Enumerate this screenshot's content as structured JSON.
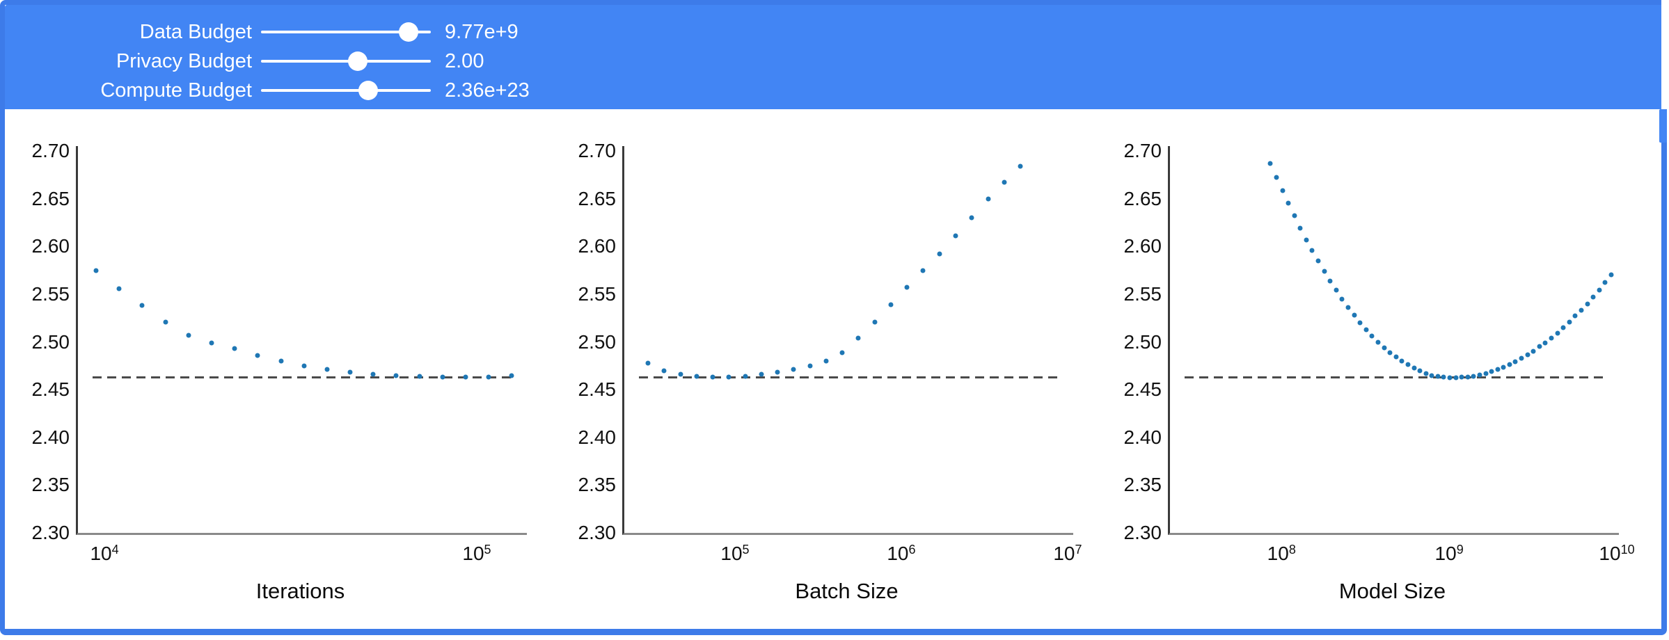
{
  "frame": {
    "border_color": "#3D7BE9",
    "background": "#ffffff"
  },
  "header": {
    "background": "#4285F4",
    "text_color": "#ffffff",
    "sliders": [
      {
        "label": "Data Budget",
        "value": "9.77e+9",
        "thumb_pct": 87
      },
      {
        "label": "Privacy Budget",
        "value": "2.00",
        "thumb_pct": 57
      },
      {
        "label": "Compute Budget",
        "value": "2.36e+23",
        "thumb_pct": 63
      }
    ]
  },
  "scrollbar": {
    "track_color": "#ffffff",
    "thumb_color": "#4285F4"
  },
  "chart_data": [
    {
      "type": "scatter",
      "xlabel": "Iterations",
      "xscale": "log",
      "xlim": [
        8380,
        134600
      ],
      "ylim": [
        2.3,
        2.7
      ],
      "yticks": [
        2.7,
        2.65,
        2.6,
        2.55,
        2.5,
        2.45,
        2.4,
        2.35,
        2.3
      ],
      "xticks": [
        {
          "value": 10000,
          "exp": "4"
        },
        {
          "value": 100000,
          "exp": "5"
        }
      ],
      "baseline": 2.463,
      "point_color": "#1F77B4",
      "baseline_color": "#4a4a4a",
      "x": [
        9500,
        10960,
        12640,
        14580,
        16820,
        19400,
        22380,
        25810,
        29780,
        34350,
        39620,
        45700,
        52720,
        60810,
        70140,
        80910,
        93330,
        107700,
        124200
      ],
      "y": [
        2.575,
        2.556,
        2.538,
        2.521,
        2.507,
        2.499,
        2.493,
        2.486,
        2.48,
        2.475,
        2.471,
        2.468,
        2.466,
        2.465,
        2.464,
        2.463,
        2.463,
        2.463,
        2.465
      ]
    },
    {
      "type": "scatter",
      "xlabel": "Batch Size",
      "xscale": "log",
      "xlim": [
        21000,
        10500000
      ],
      "ylim": [
        2.3,
        2.7
      ],
      "yticks": [
        2.7,
        2.65,
        2.6,
        2.55,
        2.5,
        2.45,
        2.4,
        2.35,
        2.3
      ],
      "xticks": [
        {
          "value": 100000,
          "exp": "5"
        },
        {
          "value": 1000000,
          "exp": "6"
        },
        {
          "value": 10000000,
          "exp": "7"
        }
      ],
      "baseline": 2.463,
      "point_color": "#1F77B4",
      "baseline_color": "#4a4a4a",
      "x": [
        30000,
        37500,
        47000,
        58800,
        73500,
        92000,
        115100,
        144000,
        180200,
        225500,
        282200,
        353100,
        441800,
        552800,
        691700,
        865600,
        1083000,
        1355000,
        1696000,
        2122000,
        2655000,
        3322000,
        4157000,
        5202000
      ],
      "y": [
        2.478,
        2.47,
        2.466,
        2.464,
        2.463,
        2.463,
        2.464,
        2.466,
        2.468,
        2.471,
        2.475,
        2.48,
        2.489,
        2.504,
        2.521,
        2.539,
        2.557,
        2.575,
        2.592,
        2.611,
        2.63,
        2.65,
        2.667,
        2.684
      ]
    },
    {
      "type": "scatter",
      "xlabel": "Model Size",
      "xscale": "log",
      "xlim": [
        21000000,
        10000000000
      ],
      "ylim": [
        2.3,
        2.7
      ],
      "yticks": [
        2.7,
        2.65,
        2.6,
        2.55,
        2.5,
        2.45,
        2.4,
        2.35,
        2.3
      ],
      "xticks": [
        {
          "value": 100000000,
          "exp": "8"
        },
        {
          "value": 1000000000,
          "exp": "9"
        },
        {
          "value": 10000000000,
          "exp": "10"
        }
      ],
      "baseline": 2.463,
      "point_color": "#1F77B4",
      "baseline_color": "#4a4a4a",
      "x": [
        85900000,
        93200000,
        101200000,
        109900000,
        119300000,
        129500000,
        140600000,
        152600000,
        165700000,
        179900000,
        195300000,
        212000000,
        230100000,
        249800000,
        271200000,
        294400000,
        319600000,
        346900000,
        376600000,
        408800000,
        443800000,
        481800000,
        523000000,
        567800000,
        616400000,
        669100000,
        726300000,
        788500000,
        856000000,
        929200000,
        1009000000,
        1095000000,
        1189000000,
        1290000000,
        1401000000,
        1521000000,
        1651000000,
        1792000000,
        1945000000,
        2112000000,
        2292000000,
        2488000000,
        2701000000,
        2932000000,
        3183000000,
        3455000000,
        3751000000,
        4072000000,
        4420000000,
        4798000000,
        5209000000,
        5654000000,
        6138000000,
        6663000000,
        7233000000,
        7852000000,
        8524000000,
        9253000000
      ],
      "y": [
        2.687,
        2.6725,
        2.6585,
        2.645,
        2.632,
        2.619,
        2.607,
        2.596,
        2.585,
        2.574,
        2.564,
        2.554,
        2.545,
        2.536,
        2.528,
        2.52,
        2.513,
        2.506,
        2.5,
        2.494,
        2.489,
        2.484,
        2.48,
        2.476,
        2.473,
        2.47,
        2.467,
        2.465,
        2.464,
        2.463,
        2.4625,
        2.4625,
        2.463,
        2.4635,
        2.464,
        2.4655,
        2.467,
        2.469,
        2.471,
        2.4735,
        2.476,
        2.479,
        2.483,
        2.4865,
        2.4905,
        2.495,
        2.499,
        2.504,
        2.509,
        2.515,
        2.521,
        2.527,
        2.533,
        2.54,
        2.547,
        2.554,
        2.562,
        2.57
      ]
    }
  ]
}
